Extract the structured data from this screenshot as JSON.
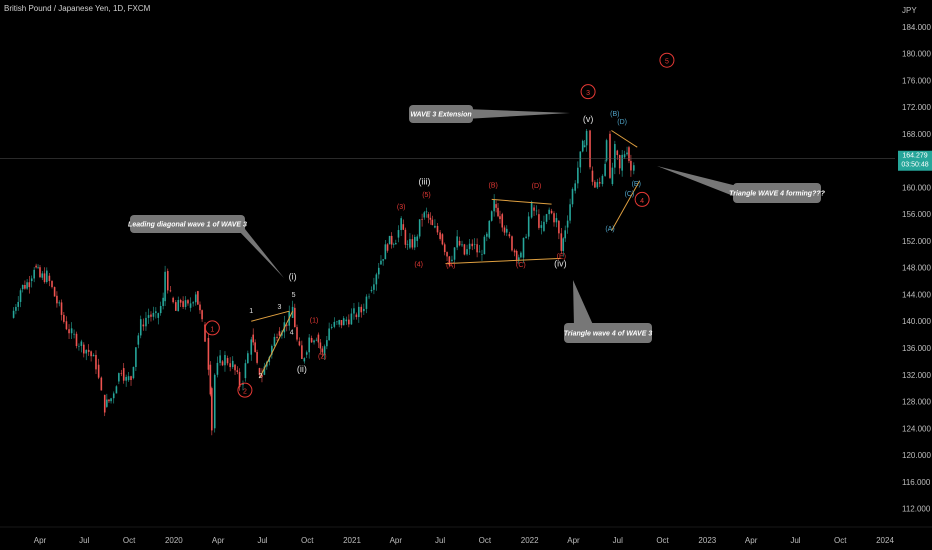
{
  "header": {
    "title": "British Pound / Japanese Yen, 1D, FXCM",
    "currency": "JPY"
  },
  "price_tag": {
    "price": "164.279",
    "countdown": "03:50:48",
    "color": "#26a69a"
  },
  "colors": {
    "bull": "#26a69a",
    "bear": "#ef5350",
    "wave_red": "#e53935",
    "wave_blue": "#4fa3c7",
    "trendline": "#e0a040",
    "callout_bg": "#777777"
  },
  "callouts": [
    {
      "id": "wave3-extension",
      "text": "WAVE 3 Extension"
    },
    {
      "id": "leading-diagonal",
      "text": "Leading diagonal wave 1 of WAVE 3"
    },
    {
      "id": "triangle-wave4",
      "text": "Triangle WAVE 4 forming???"
    },
    {
      "id": "triangle-wave4-of-3",
      "text": "Triangle wave 4 of WAVE 3"
    }
  ],
  "wave_labels": [
    {
      "text": "1",
      "style": "red-circle",
      "date": "2020-03-20",
      "price": 139.0
    },
    {
      "text": "2",
      "style": "red-circle",
      "date": "2020-05-26",
      "price": 129.7
    },
    {
      "text": "1",
      "style": "white-small",
      "date": "2020-06-08",
      "price": 141.2
    },
    {
      "text": "2",
      "style": "white-small",
      "date": "2020-06-27",
      "price": 131.5
    },
    {
      "text": "3",
      "style": "white-small",
      "date": "2020-08-05",
      "price": 141.8
    },
    {
      "text": "4",
      "style": "white-small",
      "date": "2020-08-30",
      "price": 138.0
    },
    {
      "text": "5",
      "style": "white-small",
      "date": "2020-09-03",
      "price": 143.6
    },
    {
      "text": "(i)",
      "style": "white",
      "date": "2020-09-01",
      "price": 146.2
    },
    {
      "text": "(ii)",
      "style": "white",
      "date": "2020-09-20",
      "price": 132.4
    },
    {
      "text": "(1)",
      "style": "red",
      "date": "2020-10-15",
      "price": 139.8
    },
    {
      "text": "(2)",
      "style": "red",
      "date": "2020-11-01",
      "price": 134.4
    },
    {
      "text": "(3)",
      "style": "red",
      "date": "2021-04-12",
      "price": 156.8
    },
    {
      "text": "(4)",
      "style": "red",
      "date": "2021-05-18",
      "price": 148.2
    },
    {
      "text": "(5)",
      "style": "red",
      "date": "2021-06-03",
      "price": 158.6
    },
    {
      "text": "(iii)",
      "style": "white",
      "date": "2021-05-30",
      "price": 160.4
    },
    {
      "text": "(A)",
      "style": "red",
      "date": "2021-07-23",
      "price": 148.0
    },
    {
      "text": "(B)",
      "style": "red",
      "date": "2021-10-18",
      "price": 160.0
    },
    {
      "text": "(C)",
      "style": "red",
      "date": "2021-12-14",
      "price": 148.1
    },
    {
      "text": "(D)",
      "style": "red",
      "date": "2022-01-15",
      "price": 159.9
    },
    {
      "text": "(E)",
      "style": "red",
      "date": "2022-03-07",
      "price": 149.4
    },
    {
      "text": "(iv)",
      "style": "white",
      "date": "2022-03-05",
      "price": 148.2
    },
    {
      "text": "3",
      "style": "red-circle",
      "date": "2022-05-01",
      "price": 174.3
    },
    {
      "text": "(v)",
      "style": "white",
      "date": "2022-05-01",
      "price": 169.8
    },
    {
      "text": "(B)",
      "style": "blue",
      "date": "2022-06-25",
      "price": 170.7
    },
    {
      "text": "(D)",
      "style": "blue",
      "date": "2022-07-10",
      "price": 169.5
    },
    {
      "text": "(A)",
      "style": "blue",
      "date": "2022-06-15",
      "price": 153.5
    },
    {
      "text": "(C)",
      "style": "blue",
      "date": "2022-07-25",
      "price": 158.7
    },
    {
      "text": "(E)",
      "style": "blue",
      "date": "2022-08-08",
      "price": 160.2
    },
    {
      "text": "4",
      "style": "red-circle",
      "date": "2022-08-20",
      "price": 158.2
    },
    {
      "text": "5",
      "style": "red-circle",
      "date": "2022-10-10",
      "price": 179.0
    }
  ],
  "chart_data": {
    "type": "line",
    "title": "British Pound / Japanese Yen, 1D, FXCM",
    "xlabel": "",
    "ylabel": "JPY",
    "ylim": [
      110,
      188
    ],
    "xlim": [
      "2019-02-01",
      "2024-03-01"
    ],
    "y_ticks": [
      "184.000",
      "180.000",
      "176.000",
      "172.000",
      "168.000",
      "164.000",
      "160.000",
      "156.000",
      "152.000",
      "148.000",
      "144.000",
      "140.000",
      "136.000",
      "132.000",
      "128.000",
      "124.000",
      "120.000",
      "116.000",
      "112.000"
    ],
    "x_ticks": [
      {
        "label": "Apr",
        "date": "2019-04-01"
      },
      {
        "label": "Jul",
        "date": "2019-07-01"
      },
      {
        "label": "Oct",
        "date": "2019-10-01"
      },
      {
        "label": "2020",
        "date": "2020-01-01"
      },
      {
        "label": "Apr",
        "date": "2020-04-01"
      },
      {
        "label": "Jul",
        "date": "2020-07-01"
      },
      {
        "label": "Oct",
        "date": "2020-10-01"
      },
      {
        "label": "2021",
        "date": "2021-01-01"
      },
      {
        "label": "Apr",
        "date": "2021-04-01"
      },
      {
        "label": "Jul",
        "date": "2021-07-01"
      },
      {
        "label": "Oct",
        "date": "2021-10-01"
      },
      {
        "label": "2022",
        "date": "2022-01-01"
      },
      {
        "label": "Apr",
        "date": "2022-04-01"
      },
      {
        "label": "Jul",
        "date": "2022-07-01"
      },
      {
        "label": "Oct",
        "date": "2022-10-01"
      },
      {
        "label": "2023",
        "date": "2023-01-01"
      },
      {
        "label": "Apr",
        "date": "2023-04-01"
      },
      {
        "label": "Jul",
        "date": "2023-07-01"
      },
      {
        "label": "Oct",
        "date": "2023-10-01"
      },
      {
        "label": "2024",
        "date": "2024-01-01"
      }
    ],
    "series": [
      {
        "values": [
          [
            "2019-02-01",
            140.5
          ],
          [
            "2019-02-20",
            144.8
          ],
          [
            "2019-03-10",
            146.0
          ],
          [
            "2019-03-20",
            148.3
          ],
          [
            "2019-04-01",
            146.5
          ],
          [
            "2019-04-15",
            146.8
          ],
          [
            "2019-05-01",
            143.8
          ],
          [
            "2019-05-20",
            140.0
          ],
          [
            "2019-06-05",
            138.0
          ],
          [
            "2019-06-25",
            136.5
          ],
          [
            "2019-07-10",
            135.5
          ],
          [
            "2019-07-25",
            133.5
          ],
          [
            "2019-08-05",
            129.0
          ],
          [
            "2019-08-12",
            127.2
          ],
          [
            "2019-08-25",
            128.5
          ],
          [
            "2019-09-05",
            131.0
          ],
          [
            "2019-09-15",
            133.0
          ],
          [
            "2019-09-25",
            131.2
          ],
          [
            "2019-10-05",
            131.5
          ],
          [
            "2019-10-15",
            136.5
          ],
          [
            "2019-10-25",
            139.5
          ],
          [
            "2019-11-10",
            141.0
          ],
          [
            "2019-11-25",
            140.5
          ],
          [
            "2019-12-10",
            143.0
          ],
          [
            "2019-12-14",
            147.5
          ],
          [
            "2019-12-25",
            143.5
          ],
          [
            "2020-01-05",
            141.5
          ],
          [
            "2020-01-15",
            143.0
          ],
          [
            "2020-01-30",
            142.0
          ],
          [
            "2020-02-15",
            144.5
          ],
          [
            "2020-02-28",
            139.5
          ],
          [
            "2020-03-05",
            137.5
          ],
          [
            "2020-03-12",
            133.5
          ],
          [
            "2020-03-16",
            130.0
          ],
          [
            "2020-03-19",
            124.0
          ],
          [
            "2020-03-25",
            132.0
          ],
          [
            "2020-04-05",
            134.0
          ],
          [
            "2020-04-15",
            134.5
          ],
          [
            "2020-05-01",
            133.5
          ],
          [
            "2020-05-15",
            130.5
          ],
          [
            "2020-05-22",
            131.5
          ],
          [
            "2020-06-01",
            135.0
          ],
          [
            "2020-06-08",
            138.0
          ],
          [
            "2020-06-20",
            133.0
          ],
          [
            "2020-06-30",
            132.0
          ],
          [
            "2020-07-15",
            135.0
          ],
          [
            "2020-07-31",
            138.5
          ],
          [
            "2020-08-15",
            139.5
          ],
          [
            "2020-08-25",
            140.5
          ],
          [
            "2020-09-01",
            142.0
          ],
          [
            "2020-09-10",
            137.0
          ],
          [
            "2020-09-20",
            134.0
          ],
          [
            "2020-09-25",
            135.0
          ],
          [
            "2020-10-05",
            137.5
          ],
          [
            "2020-10-20",
            138.0
          ],
          [
            "2020-11-01",
            135.0
          ],
          [
            "2020-11-15",
            139.0
          ],
          [
            "2020-12-01",
            139.5
          ],
          [
            "2020-12-15",
            140.0
          ],
          [
            "2021-01-05",
            141.0
          ],
          [
            "2021-01-20",
            141.5
          ],
          [
            "2021-02-05",
            144.5
          ],
          [
            "2021-02-25",
            148.5
          ],
          [
            "2021-03-15",
            151.5
          ],
          [
            "2021-04-01",
            152.5
          ],
          [
            "2021-04-12",
            154.5
          ],
          [
            "2021-04-25",
            151.0
          ],
          [
            "2021-05-10",
            152.0
          ],
          [
            "2021-05-25",
            155.5
          ],
          [
            "2021-06-03",
            156.0
          ],
          [
            "2021-06-15",
            154.0
          ],
          [
            "2021-07-01",
            153.0
          ],
          [
            "2021-07-20",
            149.0
          ],
          [
            "2021-08-05",
            152.0
          ],
          [
            "2021-08-20",
            150.0
          ],
          [
            "2021-09-05",
            151.5
          ],
          [
            "2021-09-20",
            150.0
          ],
          [
            "2021-10-05",
            152.5
          ],
          [
            "2021-10-20",
            157.5
          ],
          [
            "2021-11-01",
            156.0
          ],
          [
            "2021-11-15",
            153.0
          ],
          [
            "2021-12-01",
            150.5
          ],
          [
            "2021-12-14",
            149.5
          ],
          [
            "2021-12-30",
            155.5
          ],
          [
            "2022-01-05",
            157.0
          ],
          [
            "2022-01-15",
            156.0
          ],
          [
            "2022-01-25",
            153.5
          ],
          [
            "2022-02-10",
            156.5
          ],
          [
            "2022-02-25",
            155.0
          ],
          [
            "2022-03-07",
            150.5
          ],
          [
            "2022-03-15",
            154.0
          ],
          [
            "2022-03-30",
            159.5
          ],
          [
            "2022-04-10",
            163.0
          ],
          [
            "2022-04-20",
            166.0
          ],
          [
            "2022-04-28",
            168.5
          ],
          [
            "2022-05-05",
            162.5
          ],
          [
            "2022-05-15",
            160.0
          ],
          [
            "2022-05-25",
            160.5
          ],
          [
            "2022-06-05",
            164.0
          ],
          [
            "2022-06-08",
            168.0
          ],
          [
            "2022-06-15",
            160.5
          ],
          [
            "2022-06-25",
            165.5
          ],
          [
            "2022-07-05",
            162.5
          ],
          [
            "2022-07-10",
            164.5
          ],
          [
            "2022-07-20",
            166.0
          ],
          [
            "2022-07-28",
            162.5
          ],
          [
            "2022-08-03",
            164.3
          ]
        ]
      }
    ],
    "trendlines": [
      {
        "from": [
          "2020-06-08",
          140.0
        ],
        "to": [
          "2020-08-25",
          141.5
        ]
      },
      {
        "from": [
          "2020-06-25",
          131.5
        ],
        "to": [
          "2020-09-01",
          141.5
        ]
      },
      {
        "from": [
          "2021-07-12",
          148.6
        ],
        "to": [
          "2022-03-07",
          149.4
        ]
      },
      {
        "from": [
          "2021-10-15",
          158.2
        ],
        "to": [
          "2022-02-15",
          157.5
        ]
      },
      {
        "from": [
          "2022-06-18",
          153.5
        ],
        "to": [
          "2022-08-15",
          161.0
        ]
      },
      {
        "from": [
          "2022-06-18",
          168.5
        ],
        "to": [
          "2022-08-10",
          166.0
        ]
      }
    ],
    "current_price": 164.279,
    "grid": false
  }
}
